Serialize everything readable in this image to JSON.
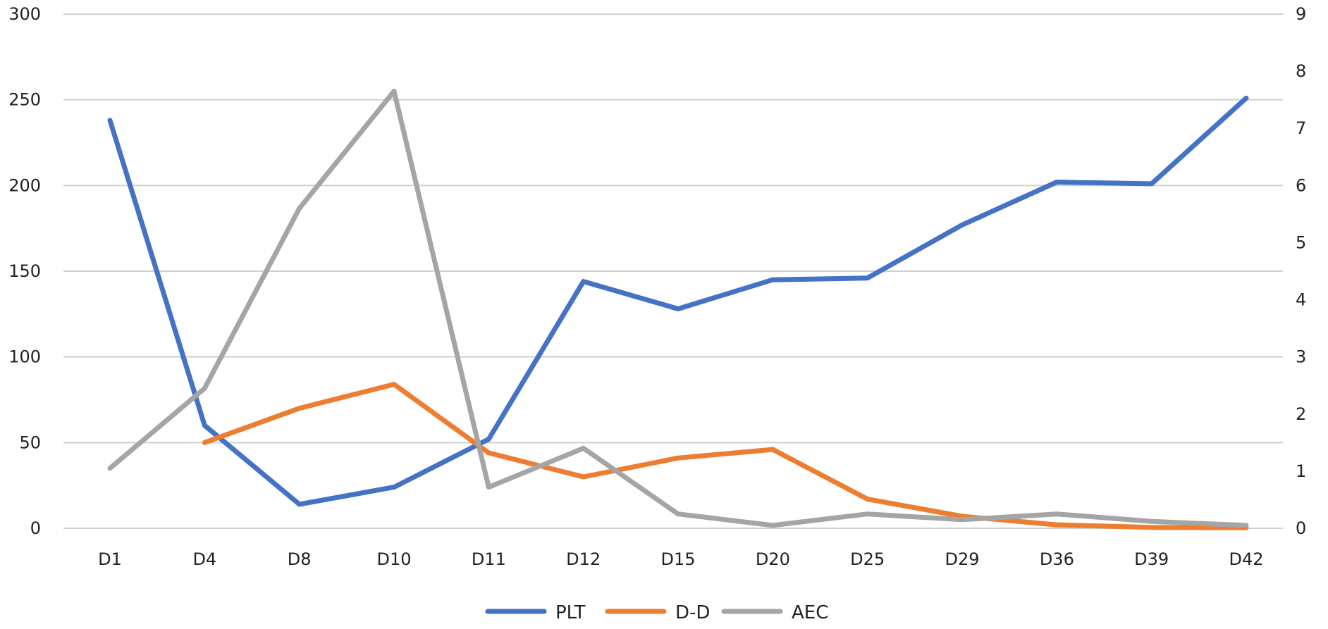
{
  "chart_data": {
    "type": "line",
    "title": "",
    "categories": [
      "D1",
      "D4",
      "D8",
      "D10",
      "D11",
      "D12",
      "D15",
      "D20",
      "D25",
      "D29",
      "D36",
      "D39",
      "D42"
    ],
    "y_left": {
      "min": 0,
      "max": 300,
      "step": 50,
      "ticks": [
        "0",
        "50",
        "100",
        "150",
        "200",
        "250",
        "300"
      ]
    },
    "y_right": {
      "min": 0,
      "max": 9,
      "step": 1,
      "ticks": [
        "0",
        "1",
        "2",
        "3",
        "4",
        "5",
        "6",
        "7",
        "8",
        "9"
      ]
    },
    "grid": true,
    "legend_position": "bottom",
    "series": [
      {
        "name": "PLT",
        "axis": "left",
        "color": "#4472C4",
        "values": [
          238,
          60,
          14,
          24,
          52,
          144,
          128,
          145,
          146,
          177,
          202,
          201,
          251
        ]
      },
      {
        "name": "D-D",
        "axis": "left",
        "color": "#ED7D31",
        "values": [
          null,
          50,
          70,
          84,
          44,
          30,
          41,
          46,
          17,
          7,
          2,
          0.5,
          0.3
        ]
      },
      {
        "name": "AEC",
        "axis": "right",
        "color": "#A5A5A5",
        "values": [
          1.05,
          2.45,
          5.6,
          7.65,
          0.72,
          1.4,
          0.25,
          0.05,
          0.25,
          0.15,
          0.25,
          0.12,
          0.05
        ]
      }
    ]
  }
}
